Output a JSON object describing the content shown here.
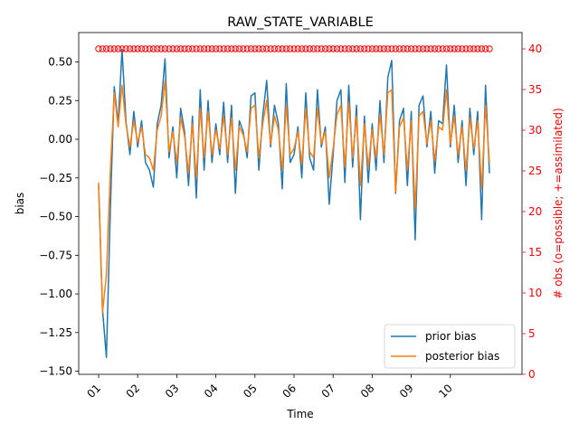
{
  "chart_data": {
    "type": "line",
    "title": "RAW_STATE_VARIABLE",
    "xlabel": "Time",
    "ylabel": "bias",
    "y2label": "# obs (o=possible; +=assimilated)",
    "xlim": [
      0,
      11
    ],
    "ylim": [
      -1.52,
      0.69
    ],
    "y2lim": [
      0,
      42
    ],
    "x_ticks": [
      {
        "label": "01",
        "value": 0
      },
      {
        "label": "02",
        "value": 1
      },
      {
        "label": "03",
        "value": 2
      },
      {
        "label": "04",
        "value": 3
      },
      {
        "label": "05",
        "value": 4
      },
      {
        "label": "06",
        "value": 5
      },
      {
        "label": "07",
        "value": 6
      },
      {
        "label": "08",
        "value": 7
      },
      {
        "label": "09",
        "value": 8
      },
      {
        "label": "10",
        "value": 9
      }
    ],
    "y_ticks": [
      "0.50",
      "0.25",
      "0.00",
      "−0.25",
      "−0.50",
      "−0.75",
      "−1.00",
      "−1.25",
      "−1.50"
    ],
    "y_tick_values": [
      0.5,
      0.25,
      0,
      -0.25,
      -0.5,
      -0.75,
      -1.0,
      -1.25,
      -1.5
    ],
    "y2_ticks": [
      "0",
      "5",
      "10",
      "15",
      "20",
      "25",
      "30",
      "35",
      "40"
    ],
    "y2_tick_values": [
      0,
      5,
      10,
      15,
      20,
      25,
      30,
      35,
      40
    ],
    "series": [
      {
        "name": "prior bias",
        "color": "#1f77b4",
        "x": [
          0.0,
          0.1,
          0.2,
          0.3,
          0.4,
          0.5,
          0.6,
          0.7,
          0.8,
          0.9,
          1.0,
          1.1,
          1.2,
          1.3,
          1.4,
          1.5,
          1.6,
          1.7,
          1.8,
          1.9,
          2.0,
          2.1,
          2.2,
          2.3,
          2.4,
          2.5,
          2.6,
          2.7,
          2.8,
          2.9,
          3.0,
          3.1,
          3.2,
          3.3,
          3.4,
          3.5,
          3.6,
          3.7,
          3.8,
          3.9,
          4.0,
          4.1,
          4.2,
          4.3,
          4.4,
          4.5,
          4.6,
          4.7,
          4.8,
          4.9,
          5.0,
          5.1,
          5.2,
          5.3,
          5.4,
          5.5,
          5.6,
          5.7,
          5.8,
          5.9,
          6.0,
          6.1,
          6.2,
          6.3,
          6.4,
          6.5,
          6.6,
          6.7,
          6.8,
          6.9,
          7.0,
          7.1,
          7.2,
          7.3,
          7.4,
          7.5,
          7.6,
          7.7,
          7.8,
          7.9,
          8.0,
          8.1,
          8.2,
          8.3,
          8.4,
          8.5,
          8.6,
          8.7,
          8.8,
          8.9,
          9.0,
          9.1,
          9.2,
          9.3,
          9.4,
          9.5,
          9.6,
          9.7,
          9.8,
          9.9,
          10.0
        ],
        "values": [
          -0.3,
          -1.1,
          -1.41,
          -0.45,
          0.34,
          0.1,
          0.58,
          0.12,
          -0.1,
          0.18,
          -0.05,
          0.12,
          -0.15,
          -0.2,
          -0.31,
          0.1,
          0.22,
          0.52,
          -0.12,
          0.08,
          -0.25,
          0.2,
          0.05,
          -0.3,
          0.15,
          -0.38,
          0.32,
          -0.2,
          0.25,
          -0.15,
          0.1,
          -0.1,
          0.24,
          -0.15,
          0.22,
          -0.35,
          0.12,
          0.05,
          -0.12,
          0.28,
          0.3,
          -0.2,
          0.15,
          0.38,
          -0.05,
          0.22,
          0.1,
          -0.32,
          0.36,
          -0.15,
          -0.1,
          0.08,
          -0.25,
          0.3,
          -0.12,
          -0.2,
          0.32,
          -0.05,
          0.08,
          -0.42,
          -0.1,
          0.25,
          0.32,
          -0.28,
          0.35,
          -0.18,
          0.22,
          -0.52,
          0.15,
          -0.28,
          0.1,
          -0.2,
          0.25,
          -0.15,
          0.4,
          0.51,
          -0.35,
          0.12,
          0.2,
          -0.3,
          0.18,
          -0.65,
          0.22,
          0.28,
          -0.05,
          0.18,
          -0.22,
          0.12,
          0.1,
          0.48,
          -0.05,
          0.22,
          -0.15,
          0.12,
          -0.3,
          0.2,
          -0.1,
          0.18,
          -0.52,
          0.35,
          -0.22
        ],
        "note": ""
      },
      {
        "name": "posterior bias",
        "color": "#ff7f0e",
        "x": [
          0.0,
          0.1,
          0.2,
          0.3,
          0.4,
          0.5,
          0.6,
          0.7,
          0.8,
          0.9,
          1.0,
          1.1,
          1.2,
          1.3,
          1.4,
          1.5,
          1.6,
          1.7,
          1.8,
          1.9,
          2.0,
          2.1,
          2.2,
          2.3,
          2.4,
          2.5,
          2.6,
          2.7,
          2.8,
          2.9,
          3.0,
          3.1,
          3.2,
          3.3,
          3.4,
          3.5,
          3.6,
          3.7,
          3.8,
          3.9,
          4.0,
          4.1,
          4.2,
          4.3,
          4.4,
          4.5,
          4.6,
          4.7,
          4.8,
          4.9,
          5.0,
          5.1,
          5.2,
          5.3,
          5.4,
          5.5,
          5.6,
          5.7,
          5.8,
          5.9,
          6.0,
          6.1,
          6.2,
          6.3,
          6.4,
          6.5,
          6.6,
          6.7,
          6.8,
          6.9,
          7.0,
          7.1,
          7.2,
          7.3,
          7.4,
          7.5,
          7.6,
          7.7,
          7.8,
          7.9,
          8.0,
          8.1,
          8.2,
          8.3,
          8.4,
          8.5,
          8.6,
          8.7,
          8.8,
          8.9,
          9.0,
          9.1,
          9.2,
          9.3,
          9.4,
          9.5,
          9.6,
          9.7,
          9.8,
          9.9,
          10.0
        ],
        "values": [
          -0.28,
          -1.12,
          -0.88,
          -0.2,
          0.3,
          0.08,
          0.35,
          0.1,
          -0.05,
          0.12,
          -0.02,
          0.08,
          -0.1,
          -0.12,
          -0.2,
          0.06,
          0.15,
          0.38,
          -0.08,
          0.05,
          -0.15,
          0.14,
          0.02,
          -0.22,
          0.1,
          -0.25,
          0.2,
          -0.12,
          0.18,
          -0.1,
          0.06,
          -0.06,
          0.15,
          -0.1,
          0.14,
          -0.2,
          0.08,
          0.03,
          -0.08,
          0.2,
          0.22,
          -0.12,
          0.1,
          0.25,
          -0.03,
          0.15,
          0.06,
          -0.2,
          0.22,
          -0.1,
          -0.06,
          0.05,
          -0.16,
          0.2,
          -0.08,
          -0.12,
          0.2,
          -0.03,
          0.05,
          -0.25,
          -0.06,
          0.16,
          0.22,
          -0.18,
          0.24,
          -0.12,
          0.15,
          -0.3,
          0.1,
          -0.18,
          0.06,
          -0.12,
          0.16,
          -0.1,
          0.3,
          0.32,
          -0.34,
          0.08,
          0.14,
          -0.2,
          0.12,
          -0.45,
          0.15,
          0.18,
          -0.03,
          0.12,
          -0.14,
          0.08,
          0.06,
          0.32,
          -0.03,
          0.15,
          -0.1,
          0.08,
          -0.2,
          0.14,
          -0.06,
          0.12,
          -0.32,
          0.22,
          -0.15
        ]
      },
      {
        "name": "",
        "axis": "right",
        "marker": "o",
        "color": "#ff0000",
        "x_start": 0,
        "x_end": 10,
        "value": 40
      }
    ],
    "legend_position": "bottom-right",
    "grid": false
  }
}
